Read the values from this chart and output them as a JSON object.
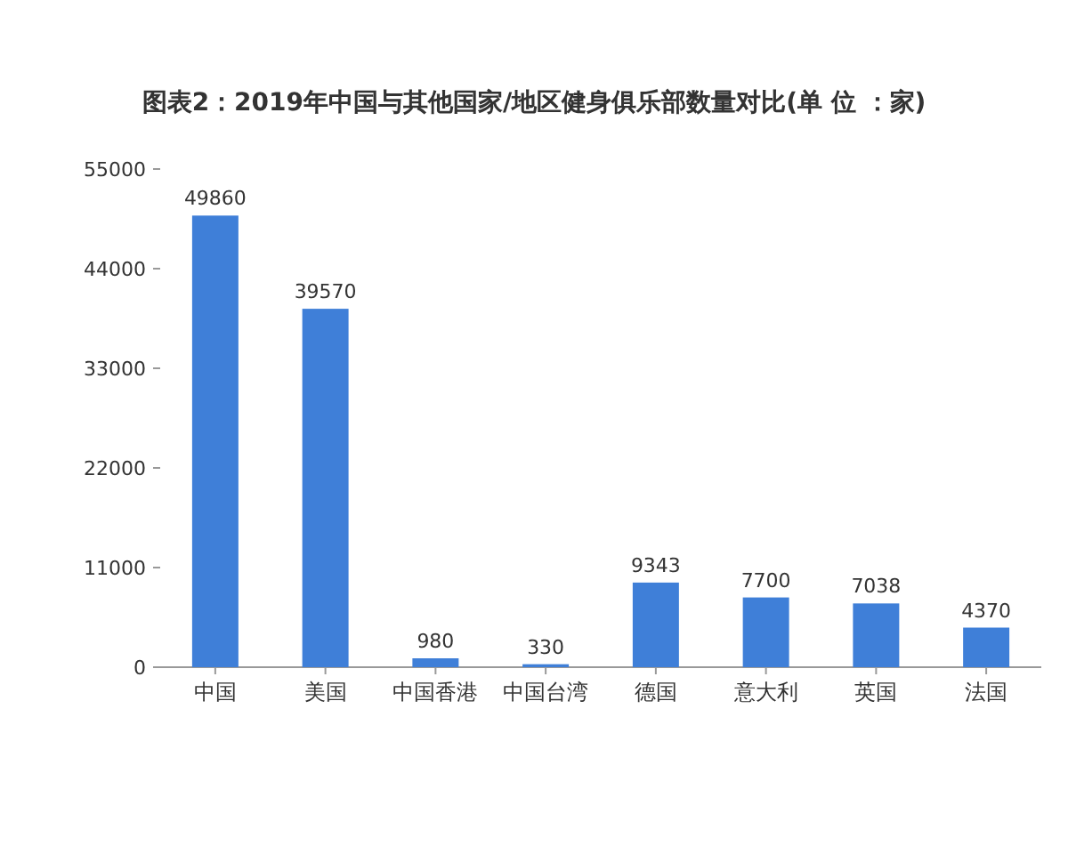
{
  "chart_data": {
    "type": "bar",
    "title": "图表2：2019年中国与其他国家/地区健身俱乐部数量对比(单 位 ：家)",
    "categories": [
      "中国",
      "美国",
      "中国香港",
      "中国台湾",
      "德国",
      "意大利",
      "英国",
      "法国"
    ],
    "values": [
      49860,
      39570,
      980,
      330,
      9343,
      7700,
      7038,
      4370
    ],
    "color": "#3f7fd8",
    "ylim": [
      0,
      55000
    ],
    "yticks": [
      0,
      11000,
      22000,
      33000,
      44000,
      55000
    ],
    "data_labels": true,
    "grid": false
  }
}
